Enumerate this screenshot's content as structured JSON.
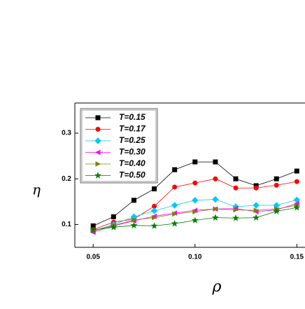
{
  "chart_data": {
    "type": "line",
    "x_label": "ρ",
    "y_label": "η",
    "x": [
      0.05,
      0.06,
      0.07,
      0.08,
      0.09,
      0.1,
      0.11,
      0.12,
      0.13,
      0.14,
      0.15
    ],
    "series": [
      {
        "name": "T=0.15",
        "color": "#000000",
        "marker": "square",
        "values": [
          0.097,
          0.117,
          0.153,
          0.178,
          0.22,
          0.237,
          0.237,
          0.2,
          0.185,
          0.2,
          0.217
        ]
      },
      {
        "name": "T=0.17",
        "color": "#ff0000",
        "marker": "circle",
        "values": [
          0.089,
          0.105,
          0.112,
          0.14,
          0.182,
          0.191,
          0.2,
          0.18,
          0.18,
          0.186,
          0.194
        ]
      },
      {
        "name": "T=0.25",
        "color": "#00c8ff",
        "marker": "diamond",
        "values": [
          0.086,
          0.1,
          0.117,
          0.13,
          0.142,
          0.153,
          0.155,
          0.139,
          0.142,
          0.142,
          0.154
        ]
      },
      {
        "name": "T=0.30",
        "color": "#ff00ff",
        "marker": "left",
        "values": [
          0.083,
          0.097,
          0.108,
          0.118,
          0.125,
          0.131,
          0.134,
          0.135,
          0.128,
          0.132,
          0.146
        ]
      },
      {
        "name": "T=0.40",
        "color": "#808000",
        "marker": "right",
        "values": [
          0.086,
          0.098,
          0.11,
          0.115,
          0.123,
          0.128,
          0.134,
          0.132,
          0.131,
          0.134,
          0.142
        ]
      },
      {
        "name": "T=0.50",
        "color": "#008000",
        "marker": "star",
        "values": [
          0.088,
          0.094,
          0.098,
          0.097,
          0.102,
          0.109,
          0.115,
          0.114,
          0.115,
          0.129,
          0.137
        ]
      }
    ],
    "xlim": [
      0.041,
      0.154
    ],
    "ylim": [
      0.05,
      0.366
    ],
    "xticks": [
      0.05,
      {
        "value": 0.1,
        "label": "0.10"
      },
      0.15
    ],
    "yticks": [
      0.1,
      0.2,
      0.3
    ],
    "legend": "upper left"
  }
}
